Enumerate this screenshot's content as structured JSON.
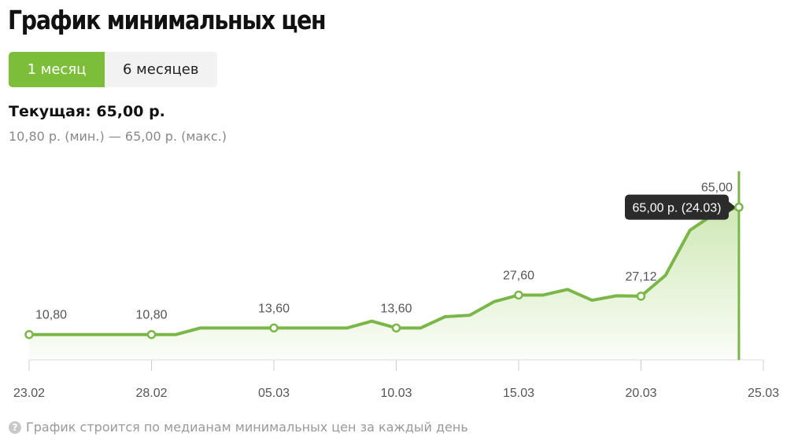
{
  "title": "График минимальных цен",
  "tabs": [
    {
      "label": "1 месяц",
      "active": true
    },
    {
      "label": "6 месяцев",
      "active": false
    }
  ],
  "current": "Текущая: 65,00 р.",
  "range": "10,80 р. (мин.) — 65,00 р. (макс.)",
  "note": "График строится по медианам минимальных цен за каждый день",
  "note_icon": "question-circle-icon",
  "colors": {
    "accent": "#7cbd3a",
    "line": "#7ab648",
    "tooltip_bg": "#2b2b2b"
  },
  "chart_data": {
    "type": "area",
    "x": [
      "23.02",
      "24.02",
      "25.02",
      "26.02",
      "27.02",
      "28.02",
      "01.03",
      "02.03",
      "03.03",
      "04.03",
      "05.03",
      "06.03",
      "07.03",
      "08.03",
      "09.03",
      "10.03",
      "11.03",
      "12.03",
      "13.03",
      "14.03",
      "15.03",
      "16.03",
      "17.03",
      "18.03",
      "19.03",
      "20.03",
      "21.03",
      "22.03",
      "23.03",
      "24.03"
    ],
    "values": [
      10.8,
      10.8,
      10.8,
      10.8,
      10.8,
      10.8,
      10.8,
      13.6,
      13.6,
      13.6,
      13.6,
      13.6,
      13.6,
      13.6,
      16.5,
      13.6,
      13.6,
      18.4,
      19.0,
      24.8,
      27.6,
      27.6,
      30.0,
      25.4,
      27.3,
      27.12,
      36.0,
      55.2,
      62.2,
      65.0
    ],
    "x_ticks": [
      "23.02",
      "28.02",
      "05.03",
      "10.03",
      "15.03",
      "20.03",
      "25.03"
    ],
    "data_labels": [
      {
        "x": "23.02",
        "label": "10,80"
      },
      {
        "x": "28.02",
        "label": "10,80"
      },
      {
        "x": "05.03",
        "label": "13,60"
      },
      {
        "x": "10.03",
        "label": "13,60"
      },
      {
        "x": "15.03",
        "label": "27,60"
      },
      {
        "x": "20.03",
        "label": "27,12"
      },
      {
        "x": "24.03",
        "label": "65,00"
      }
    ],
    "tooltip": "65,00 р. (24.03)",
    "ylim": [
      0,
      65
    ],
    "grid": false
  }
}
